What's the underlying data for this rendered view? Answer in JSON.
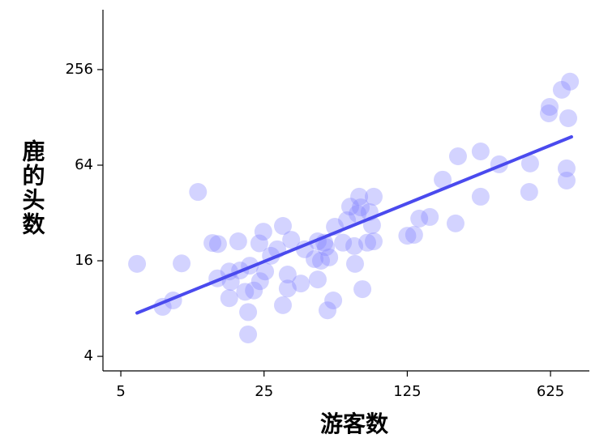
{
  "chart_data": {
    "type": "scatter",
    "xlabel": "游客数",
    "ylabel": "鹿的头数",
    "x": [
      6.0,
      8.0,
      9.0,
      9.9,
      11.9,
      14.0,
      14.9,
      14.8,
      16.9,
      17.2,
      16.9,
      18.7,
      19.1,
      20.2,
      20.9,
      20.9,
      21.3,
      22.3,
      23.7,
      23.9,
      24.8,
      25.3,
      27.0,
      29.0,
      30.9,
      30.9,
      32.6,
      32.6,
      33.9,
      37.8,
      39.5,
      44.1,
      45.7,
      45.7,
      47.4,
      49.2,
      50.1,
      51.0,
      52.0,
      54.4,
      55.4,
      60.7,
      63.5,
      65.8,
      68.9,
      69.5,
      71.5,
      72.8,
      74.1,
      75.5,
      79.7,
      81.8,
      84.1,
      85.7,
      85.7,
      125,
      135,
      143,
      161,
      186,
      215,
      221,
      285,
      285,
      351,
      492,
      497,
      613,
      619,
      709,
      763,
      778,
      749,
      749
    ],
    "y": [
      15.3,
      8.2,
      9.0,
      15.4,
      43.4,
      20.7,
      20.4,
      12.4,
      13.7,
      11.8,
      9.3,
      21.2,
      13.9,
      10.2,
      7.6,
      5.5,
      14.9,
      10.4,
      20.6,
      11.9,
      24.4,
      13.7,
      17.2,
      18.9,
      26.5,
      8.4,
      13.1,
      10.7,
      21.7,
      11.5,
      18.9,
      16.4,
      21.2,
      12.2,
      16.0,
      20.8,
      19.5,
      7.8,
      16.8,
      9.0,
      26.2,
      20.8,
      28.8,
      35.1,
      19.8,
      15.3,
      31.6,
      40.5,
      34.7,
      10.6,
      20.8,
      32.4,
      26.8,
      40.5,
      21.2,
      23.0,
      23.3,
      29.5,
      30.2,
      51.9,
      27.5,
      72.8,
      40.5,
      78.1,
      64.8,
      43.4,
      65.6,
      135.7,
      149,
      191,
      126.5,
      215,
      61.1,
      51.2
    ],
    "color": "#8080ff",
    "trendline": {
      "x": [
        6.0,
        791
      ],
      "y": [
        7.5,
        96.5
      ],
      "color": "#4a4aee"
    },
    "xscale": "log",
    "yscale": "log",
    "xlim": [
      4.09,
      967
    ],
    "ylim": [
      3.24,
      610
    ],
    "xticks": [
      5,
      25,
      125,
      625
    ],
    "yticks": [
      4,
      16,
      64,
      256
    ]
  }
}
